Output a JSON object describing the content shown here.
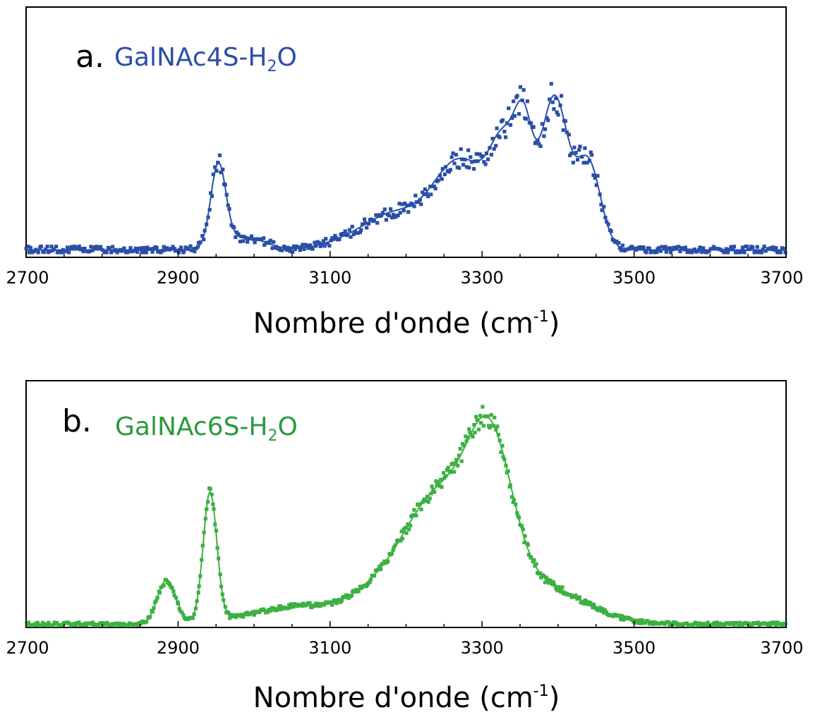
{
  "chart_data": [
    {
      "type": "scatter",
      "panel_label": "a.",
      "title_parts": {
        "main": "GalNAc4S-H",
        "sub": "2",
        "tail": "O"
      },
      "xlabel_parts": {
        "main": "Nombre d'onde (cm",
        "sup": "-1",
        "tail": ")"
      },
      "xlim": [
        2700,
        3700
      ],
      "ylim": [
        0,
        1
      ],
      "xticks": [
        2700,
        2900,
        3100,
        3300,
        3500,
        3700
      ],
      "color": "#2a4fa8",
      "grid": false,
      "peaks": [
        {
          "x": 2953,
          "y": 0.34,
          "w": 10
        },
        {
          "x": 2990,
          "y": 0.05,
          "w": 25
        },
        {
          "x": 3140,
          "y": 0.05,
          "w": 40
        },
        {
          "x": 3190,
          "y": 0.12,
          "w": 35
        },
        {
          "x": 3255,
          "y": 0.18,
          "w": 30
        },
        {
          "x": 3290,
          "y": 0.24,
          "w": 35
        },
        {
          "x": 3330,
          "y": 0.33,
          "w": 18
        },
        {
          "x": 3355,
          "y": 0.38,
          "w": 12
        },
        {
          "x": 3395,
          "y": 0.62,
          "w": 18
        },
        {
          "x": 3440,
          "y": 0.35,
          "w": 16
        }
      ],
      "baseline": 0.01,
      "noise": 0.035,
      "n_points": 520
    },
    {
      "type": "scatter",
      "panel_label": "b.",
      "title_parts": {
        "main": "GalNAc6S-H",
        "sub": "2",
        "tail": "O"
      },
      "xlabel_parts": {
        "main": "Nombre d'onde (cm",
        "sup": "-1",
        "tail": ")"
      },
      "xlim": [
        2700,
        3700
      ],
      "ylim": [
        0,
        1
      ],
      "xticks": [
        2700,
        2900,
        3100,
        3300,
        3500,
        3700
      ],
      "color": "#3cb043",
      "grid": false,
      "peaks": [
        {
          "x": 2885,
          "y": 0.18,
          "w": 12
        },
        {
          "x": 2942,
          "y": 0.53,
          "w": 9
        },
        {
          "x": 3055,
          "y": 0.07,
          "w": 60
        },
        {
          "x": 3180,
          "y": 0.16,
          "w": 45
        },
        {
          "x": 3245,
          "y": 0.45,
          "w": 40
        },
        {
          "x": 3310,
          "y": 0.65,
          "w": 30
        },
        {
          "x": 3380,
          "y": 0.15,
          "w": 55
        }
      ],
      "baseline": 0.005,
      "noise": 0.018,
      "n_points": 620
    }
  ]
}
